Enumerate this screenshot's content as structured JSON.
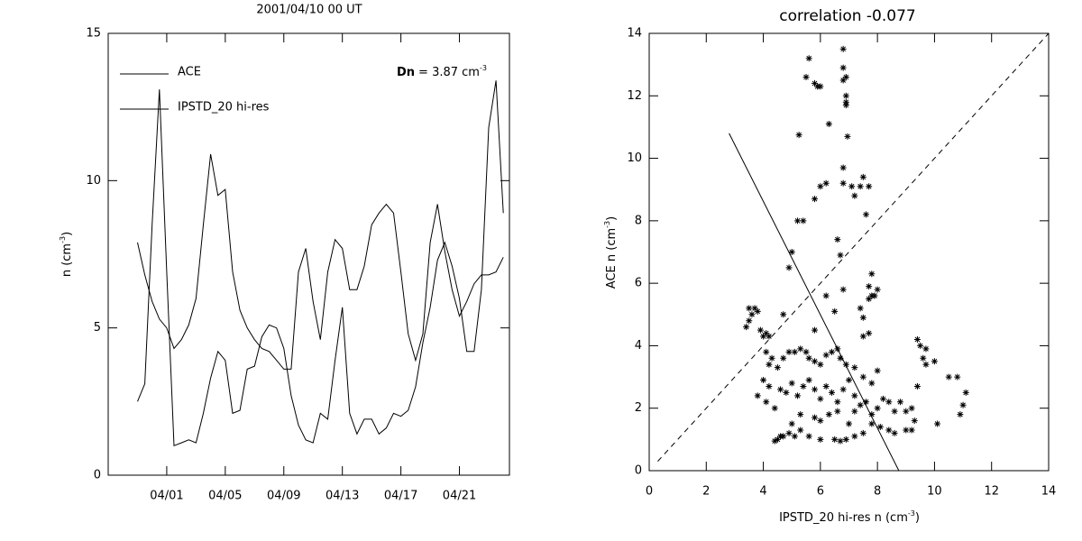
{
  "chart_data": [
    {
      "type": "line",
      "title": "2001/04/10 00 UT",
      "ylabel": [
        "n (cm",
        "-3",
        ")"
      ],
      "annotation": {
        "symbol": "Dn",
        "text": "= 3.87 cm",
        "sup": "-3"
      },
      "x": [
        "2001-03-30T00:00Z",
        "2001-03-30T12:00Z",
        "2001-03-31T00:00Z",
        "2001-03-31T12:00Z",
        "2001-04-01T00:00Z",
        "2001-04-01T12:00Z",
        "2001-04-02T00:00Z",
        "2001-04-02T12:00Z",
        "2001-04-03T00:00Z",
        "2001-04-03T12:00Z",
        "2001-04-04T00:00Z",
        "2001-04-04T12:00Z",
        "2001-04-05T00:00Z",
        "2001-04-05T12:00Z",
        "2001-04-06T00:00Z",
        "2001-04-06T12:00Z",
        "2001-04-07T00:00Z",
        "2001-04-07T12:00Z",
        "2001-04-08T00:00Z",
        "2001-04-08T12:00Z",
        "2001-04-09T00:00Z",
        "2001-04-09T12:00Z",
        "2001-04-10T00:00Z",
        "2001-04-10T12:00Z",
        "2001-04-11T00:00Z",
        "2001-04-11T12:00Z",
        "2001-04-12T00:00Z",
        "2001-04-12T12:00Z",
        "2001-04-13T00:00Z",
        "2001-04-13T12:00Z",
        "2001-04-14T00:00Z",
        "2001-04-14T12:00Z",
        "2001-04-15T00:00Z",
        "2001-04-15T12:00Z",
        "2001-04-16T00:00Z",
        "2001-04-16T12:00Z",
        "2001-04-17T00:00Z",
        "2001-04-17T12:00Z",
        "2001-04-18T00:00Z",
        "2001-04-18T12:00Z",
        "2001-04-19T00:00Z",
        "2001-04-19T12:00Z",
        "2001-04-20T00:00Z",
        "2001-04-20T12:00Z",
        "2001-04-21T00:00Z",
        "2001-04-21T12:00Z",
        "2001-04-22T00:00Z",
        "2001-04-22T12:00Z",
        "2001-04-23T00:00Z",
        "2001-04-23T12:00Z",
        "2001-04-24T00:00Z"
      ],
      "series": [
        {
          "name": "ACE",
          "color": "#000000",
          "values": [
            7.9,
            6.8,
            5.9,
            5.3,
            5.0,
            4.3,
            4.6,
            5.1,
            6.0,
            8.5,
            10.9,
            9.5,
            9.7,
            6.9,
            5.6,
            5.0,
            4.6,
            4.3,
            4.2,
            3.9,
            3.6,
            3.6,
            6.9,
            7.7,
            5.9,
            4.6,
            6.9,
            8.0,
            7.7,
            6.3,
            6.3,
            7.1,
            8.5,
            8.9,
            9.2,
            8.9,
            6.9,
            4.8,
            3.9,
            4.8,
            7.9,
            9.2,
            7.6,
            6.3,
            5.4,
            5.9,
            6.5,
            6.8,
            6.8,
            6.9,
            7.4
          ]
        },
        {
          "name": "IPSTD_20 hi-res",
          "color": "#000000",
          "values": [
            2.5,
            3.1,
            8.5,
            13.1,
            6.9,
            1.0,
            1.1,
            1.2,
            1.1,
            2.1,
            3.3,
            4.2,
            3.9,
            2.1,
            2.2,
            3.6,
            3.7,
            4.7,
            5.1,
            5.0,
            4.3,
            2.7,
            1.7,
            1.2,
            1.1,
            2.1,
            1.9,
            3.9,
            5.7,
            2.1,
            1.4,
            1.9,
            1.9,
            1.4,
            1.6,
            2.1,
            2.0,
            2.2,
            3.0,
            4.5,
            5.7,
            7.3,
            7.9,
            7.1,
            6.0,
            4.2,
            4.2,
            6.3,
            11.8,
            13.4,
            8.9
          ]
        }
      ],
      "xlim": [
        "2001-03-28T00:00Z",
        "2001-04-24T10:00Z"
      ],
      "xticks": [
        {
          "value": "2001-04-01T00:00Z",
          "label": "04/01"
        },
        {
          "value": "2001-04-05T00:00Z",
          "label": "04/05"
        },
        {
          "value": "2001-04-09T00:00Z",
          "label": "04/09"
        },
        {
          "value": "2001-04-13T00:00Z",
          "label": "04/13"
        },
        {
          "value": "2001-04-17T00:00Z",
          "label": "04/17"
        },
        {
          "value": "2001-04-21T00:00Z",
          "label": "04/21"
        }
      ],
      "ylim": [
        0,
        15
      ],
      "yticks": [
        0,
        5,
        10,
        15
      ],
      "legend": "top-left"
    },
    {
      "type": "scatter",
      "title": "correlation -0.077",
      "xlabel": [
        "IPSTD_20 hi-res n (cm",
        "-3",
        ")"
      ],
      "ylabel": [
        "ACE n (cm",
        "-3",
        ")"
      ],
      "x": [
        5.6,
        5.5,
        5.8,
        5.9,
        6.0,
        6.8,
        6.8,
        6.8,
        6.9,
        6.9,
        6.9,
        6.9,
        6.3,
        5.25,
        6.95,
        6.8,
        6.0,
        6.2,
        6.8,
        7.1,
        7.5,
        7.4,
        7.7,
        7.2,
        5.8,
        7.6,
        5.2,
        5.4,
        5.0,
        6.6,
        6.7,
        4.9,
        6.8,
        6.2,
        7.8,
        7.7,
        7.8,
        7.9,
        8.0,
        7.7,
        7.4,
        6.5,
        7.5,
        4.7,
        3.5,
        3.6,
        3.5,
        3.4,
        3.7,
        3.8,
        3.9,
        4.0,
        4.1,
        4.2,
        5.8,
        7.5,
        7.7,
        6.6,
        9.4,
        9.5,
        9.7,
        9.6,
        9.7,
        10.0,
        10.5,
        4.1,
        4.3,
        4.2,
        4.5,
        4.7,
        4.9,
        5.1,
        5.3,
        5.5,
        5.6,
        5.8,
        6.0,
        6.2,
        6.4,
        6.7,
        6.9,
        7.2,
        7.5,
        7.8,
        8.0,
        4.0,
        4.2,
        3.8,
        4.1,
        4.4,
        4.6,
        4.8,
        5.0,
        5.2,
        5.4,
        5.6,
        5.8,
        6.0,
        6.2,
        6.4,
        6.6,
        6.8,
        7.0,
        7.2,
        7.4,
        7.6,
        7.8,
        8.0,
        8.2,
        8.4,
        8.6,
        8.8,
        9.0,
        9.2,
        9.4,
        9.3,
        9.0,
        8.6,
        8.4,
        8.1,
        7.8,
        7.5,
        7.2,
        6.9,
        6.7,
        6.5,
        6.0,
        5.6,
        5.3,
        5.1,
        4.9,
        4.7,
        4.5,
        4.4,
        4.6,
        5.0,
        5.3,
        5.8,
        6.0,
        6.3,
        6.6,
        7.0,
        7.2,
        9.2,
        10.1,
        10.9,
        11.0,
        11.1,
        10.8
      ],
      "series": [
        {
          "color": "#000000",
          "values": [
            13.2,
            12.6,
            12.4,
            12.3,
            12.3,
            13.5,
            12.9,
            12.5,
            12.6,
            12.0,
            11.8,
            11.7,
            11.1,
            10.75,
            10.7,
            9.7,
            9.1,
            9.2,
            9.2,
            9.1,
            9.4,
            9.1,
            9.1,
            8.8,
            8.7,
            8.2,
            8.0,
            8.0,
            7.0,
            7.4,
            6.9,
            6.5,
            5.8,
            5.6,
            6.3,
            5.9,
            5.6,
            5.6,
            5.8,
            5.5,
            5.2,
            5.1,
            4.9,
            5.0,
            5.2,
            5.0,
            4.8,
            4.6,
            5.2,
            5.1,
            4.5,
            4.3,
            4.4,
            4.3,
            4.5,
            4.3,
            4.4,
            3.9,
            4.2,
            4.0,
            3.9,
            3.6,
            3.4,
            3.5,
            3.0,
            3.8,
            3.6,
            3.4,
            3.3,
            3.6,
            3.8,
            3.8,
            3.9,
            3.8,
            3.6,
            3.5,
            3.4,
            3.7,
            3.8,
            3.6,
            3.4,
            3.3,
            3.0,
            2.8,
            3.2,
            2.9,
            2.7,
            2.4,
            2.2,
            2.0,
            2.6,
            2.5,
            2.8,
            2.4,
            2.7,
            2.9,
            2.6,
            2.3,
            2.7,
            2.5,
            2.2,
            2.6,
            2.9,
            2.4,
            2.1,
            2.2,
            1.8,
            2.0,
            2.3,
            2.2,
            1.9,
            2.2,
            1.9,
            2.0,
            2.7,
            1.6,
            1.3,
            1.2,
            1.3,
            1.4,
            1.5,
            1.2,
            1.1,
            1.0,
            0.95,
            1.0,
            1.0,
            1.1,
            1.3,
            1.1,
            1.2,
            1.1,
            1.0,
            0.95,
            1.1,
            1.5,
            1.8,
            1.7,
            1.6,
            1.8,
            1.9,
            1.5,
            1.9,
            1.3,
            1.5,
            1.8,
            2.1,
            2.5,
            3.0
          ]
        }
      ],
      "lines": [
        {
          "x": [
            0.3,
            14
          ],
          "y": [
            0.3,
            14
          ],
          "dash": true
        },
        {
          "x": [
            2.8,
            8.75
          ],
          "y": [
            10.8,
            0
          ],
          "dash": false
        }
      ],
      "xlim": [
        0,
        14
      ],
      "xticks": [
        0,
        2,
        4,
        6,
        8,
        10,
        12,
        14
      ],
      "ylim": [
        0,
        14
      ],
      "yticks": [
        0,
        2,
        4,
        6,
        8,
        10,
        12,
        14
      ]
    }
  ]
}
